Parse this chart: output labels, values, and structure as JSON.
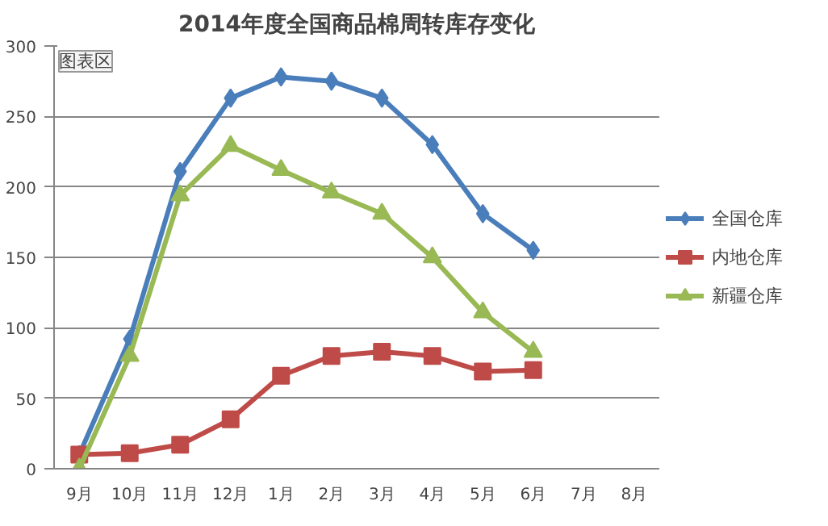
{
  "chart_data": {
    "type": "line",
    "title": "2014年度全国商品棉周转库存变化",
    "categories": [
      "9月",
      "10月",
      "11月",
      "12月",
      "1月",
      "2月",
      "3月",
      "4月",
      "5月",
      "6月",
      "7月",
      "8月"
    ],
    "series": [
      {
        "name": "全国仓库",
        "color": "#4a7ebb",
        "marker": "diamond",
        "values": [
          10,
          92,
          211,
          263,
          278,
          275,
          263,
          230,
          181,
          155,
          null,
          null
        ]
      },
      {
        "name": "内地仓库",
        "color": "#be4b48",
        "marker": "square",
        "values": [
          10,
          11,
          17,
          35,
          66,
          80,
          83,
          80,
          69,
          70,
          null,
          null
        ]
      },
      {
        "name": "新疆仓库",
        "color": "#98b954",
        "marker": "triangle",
        "values": [
          0,
          80,
          194,
          229,
          212,
          196,
          181,
          150,
          111,
          83,
          null,
          null
        ]
      }
    ],
    "ylim": [
      0,
      300
    ],
    "yticks": [
      0,
      50,
      100,
      150,
      200,
      250,
      300
    ],
    "grid": "y",
    "legend": "right",
    "annotations": [
      "图表区"
    ]
  }
}
